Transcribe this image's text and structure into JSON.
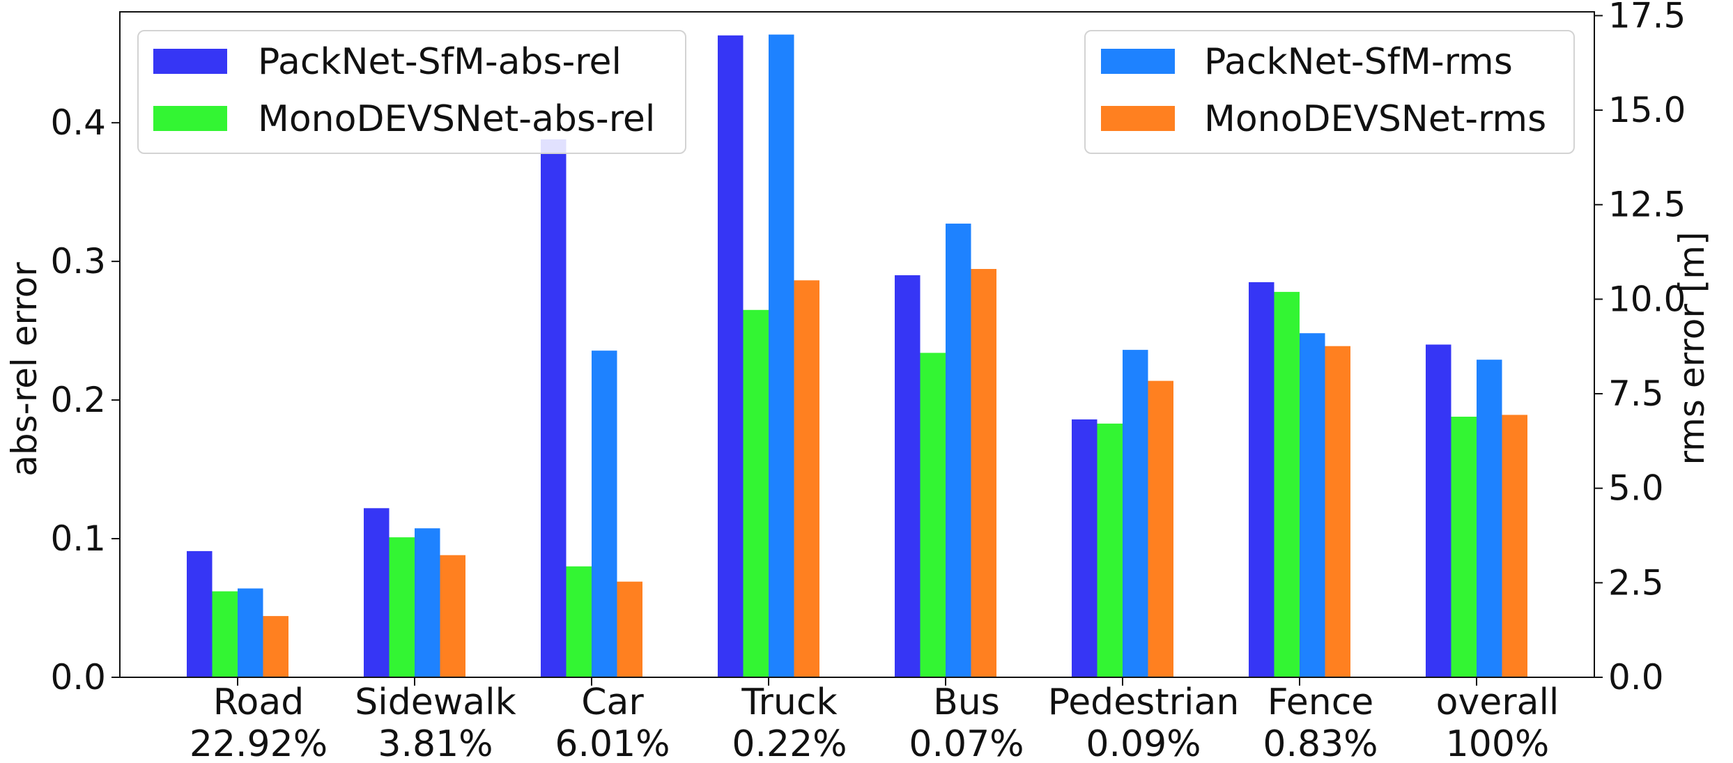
{
  "chart_data": {
    "type": "bar",
    "title": "",
    "categories": [
      "Road",
      "Sidewalk",
      "Car",
      "Truck",
      "Bus",
      "Pedestrian",
      "Fence",
      "overall"
    ],
    "category_percentages": [
      "22.92%",
      "3.81%",
      "6.01%",
      "0.22%",
      "0.07%",
      "0.09%",
      "0.83%",
      "100%"
    ],
    "left_axis": {
      "label": "abs-rel error",
      "ylim": [
        0,
        0.48
      ],
      "ticks": [
        0.0,
        0.1,
        0.2,
        0.3,
        0.4
      ],
      "tick_labels": [
        "0.0",
        "0.1",
        "0.2",
        "0.3",
        "0.4"
      ]
    },
    "right_axis": {
      "label": "rms error [m]",
      "ylim": [
        0,
        17.6
      ],
      "ticks": [
        0.0,
        2.5,
        5.0,
        7.5,
        10.0,
        12.5,
        15.0,
        17.5
      ],
      "tick_labels": [
        "0.0",
        "2.5",
        "5.0",
        "7.5",
        "10.0",
        "12.5",
        "15.0",
        "17.5"
      ]
    },
    "series": [
      {
        "name": "PackNet-SfM-abs-rel",
        "axis": "left",
        "color": "#3636f5",
        "values": [
          0.091,
          0.122,
          0.388,
          0.463,
          0.29,
          0.186,
          0.285,
          0.24
        ]
      },
      {
        "name": "MonoDEVSNet-abs-rel",
        "axis": "left",
        "color": "#33f533",
        "values": [
          0.062,
          0.101,
          0.08,
          0.265,
          0.234,
          0.183,
          0.278,
          0.188
        ]
      },
      {
        "name": "PackNet-SfM-rms",
        "axis": "right",
        "color": "#1e82ff",
        "values": [
          2.35,
          3.94,
          8.64,
          17.0,
          12.0,
          8.66,
          9.1,
          8.4
        ]
      },
      {
        "name": "MonoDEVSNet-rms",
        "axis": "right",
        "color": "#ff8020",
        "values": [
          1.62,
          3.23,
          2.53,
          10.5,
          10.8,
          7.84,
          8.76,
          6.94
        ]
      }
    ],
    "legends": [
      {
        "position": "top-left",
        "entries": [
          "PackNet-SfM-abs-rel",
          "MonoDEVSNet-abs-rel"
        ]
      },
      {
        "position": "top-right",
        "entries": [
          "PackNet-SfM-rms",
          "MonoDEVSNet-rms"
        ]
      }
    ],
    "grid": false
  }
}
